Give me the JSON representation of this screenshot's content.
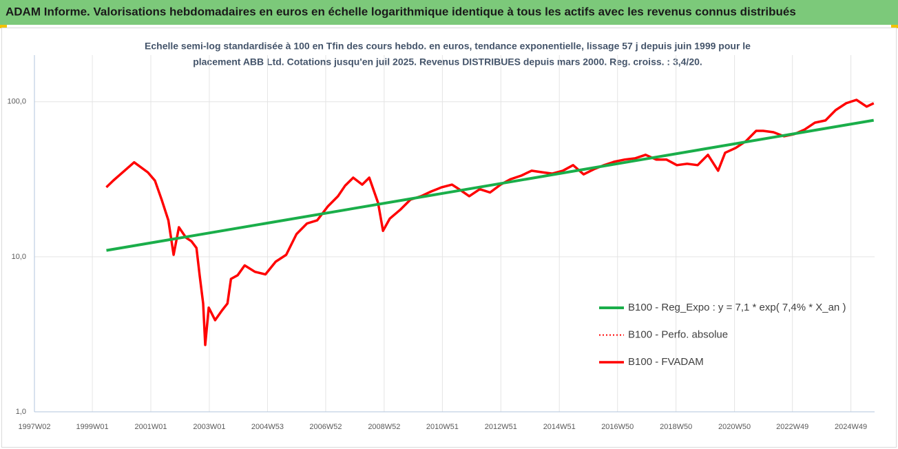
{
  "chart_data": {
    "type": "line",
    "title": "ADAM Informe. Valorisations hebdomadaires en euros en échelle logarithmique identique à tous les actifs avec les revenus connus distribués",
    "subtitle": [
      "Echelle semi-log standardisée à 100 en Tfin des cours hebdo. en euros, tendance exponentielle, lissage 57 j depuis juin 1999 pour le",
      "placement ABB Ltd. Cotations jusqu'en juil 2025. Revenus DISTRIBUES depuis mars 2000. Reg. croiss. : 3,4/20."
    ],
    "log_scale": true,
    "grid": true,
    "legend": "right",
    "xlim": [
      1997.02,
      2025.75
    ],
    "ylim": [
      1,
      200
    ],
    "yticks": [
      {
        "value": 1,
        "label": "1,0"
      },
      {
        "value": 10,
        "label": "10,0"
      },
      {
        "value": 100,
        "label": "100,0"
      }
    ],
    "xticks": [
      {
        "value": 1997.02,
        "label": "1997W02"
      },
      {
        "value": 1999.0,
        "label": "1999W01"
      },
      {
        "value": 2001.0,
        "label": "2001W01"
      },
      {
        "value": 2003.0,
        "label": "2003W01"
      },
      {
        "value": 2004.99,
        "label": "2004W53"
      },
      {
        "value": 2006.98,
        "label": "2006W52"
      },
      {
        "value": 2008.98,
        "label": "2008W52"
      },
      {
        "value": 2010.97,
        "label": "2010W51"
      },
      {
        "value": 2012.97,
        "label": "2012W51"
      },
      {
        "value": 2014.97,
        "label": "2014W51"
      },
      {
        "value": 2016.96,
        "label": "2016W50"
      },
      {
        "value": 2018.96,
        "label": "2018W50"
      },
      {
        "value": 2020.96,
        "label": "2020W50"
      },
      {
        "value": 2022.94,
        "label": "2022W49"
      },
      {
        "value": 2024.94,
        "label": "2024W49"
      }
    ],
    "x": [
      1999.48,
      1999.72,
      2000.43,
      2000.9,
      2001.14,
      2001.37,
      2001.6,
      2001.78,
      2001.96,
      2002.2,
      2002.39,
      2002.56,
      2002.67,
      2002.79,
      2002.86,
      2002.98,
      2003.2,
      2003.43,
      2003.62,
      2003.74,
      2003.97,
      2004.21,
      2004.56,
      2004.92,
      2005.27,
      2005.63,
      2005.98,
      2006.34,
      2006.69,
      2007.05,
      2007.4,
      2007.64,
      2007.92,
      2008.23,
      2008.47,
      2008.77,
      2008.94,
      2009.17,
      2009.53,
      2009.88,
      2010.24,
      2010.59,
      2010.95,
      2011.3,
      2011.54,
      2011.89,
      2012.25,
      2012.6,
      2012.96,
      2013.31,
      2013.67,
      2014.02,
      2014.38,
      2014.73,
      2015.09,
      2015.44,
      2015.8,
      2016.15,
      2016.5,
      2016.86,
      2017.21,
      2017.57,
      2017.92,
      2018.28,
      2018.63,
      2018.99,
      2019.34,
      2019.7,
      2020.05,
      2020.4,
      2020.64,
      2021.0,
      2021.35,
      2021.7,
      2021.94,
      2022.29,
      2022.65,
      2023.0,
      2023.36,
      2023.71,
      2024.07,
      2024.42,
      2024.78,
      2025.13,
      2025.48,
      2025.72
    ],
    "series": [
      {
        "name": "B100 - Reg_Expo : y = 7,1 * exp( 7,4% *  X_an )",
        "color": "#1aae4a",
        "width": 4,
        "dash": false,
        "x": [
          1999.48,
          2025.72
        ],
        "values": [
          11,
          76
        ]
      },
      {
        "name": "B100 - Perfo. absolue",
        "color": "#ff0000",
        "width": 2,
        "dash": true,
        "values": [
          28.1,
          31.1,
          40.7,
          35,
          31,
          23.4,
          17.2,
          10.3,
          15.5,
          13.3,
          12.6,
          11.4,
          7.6,
          5.0,
          2.7,
          4.7,
          3.9,
          4.5,
          5.0,
          7.2,
          7.6,
          8.8,
          8.0,
          7.7,
          9.3,
          10.3,
          14.0,
          16.4,
          17.2,
          21.1,
          24.6,
          28.7,
          32.4,
          29.2,
          32.4,
          22.3,
          14.7,
          17.6,
          20.1,
          23.4,
          24.6,
          26.4,
          28.1,
          29.2,
          27.3,
          24.6,
          27.3,
          26.0,
          29.2,
          31.7,
          33.4,
          35.9,
          35.1,
          34.4,
          35.9,
          39.0,
          34.0,
          36.7,
          39.0,
          41.1,
          42.4,
          43.2,
          45.5,
          42.4,
          42.4,
          39.0,
          39.8,
          39.0,
          45.5,
          35.9,
          46.9,
          50.4,
          55.7,
          64.9,
          64.9,
          63.6,
          59.9,
          61.8,
          66.2,
          73.3,
          75.8,
          88.3,
          97.8,
          102.9,
          93.1,
          97.8
        ]
      },
      {
        "name": "B100 - FVADAM",
        "color": "#ff0000",
        "width": 3.5,
        "dash": false,
        "values": [
          28.1,
          31.1,
          40.7,
          35,
          31,
          23.4,
          17.2,
          10.3,
          15.5,
          13.3,
          12.6,
          11.4,
          7.6,
          5.0,
          2.7,
          4.7,
          3.9,
          4.5,
          5.0,
          7.2,
          7.6,
          8.8,
          8.0,
          7.7,
          9.3,
          10.3,
          14.0,
          16.4,
          17.2,
          21.1,
          24.6,
          28.7,
          32.4,
          29.2,
          32.4,
          22.3,
          14.7,
          17.6,
          20.1,
          23.4,
          24.6,
          26.4,
          28.1,
          29.2,
          27.3,
          24.6,
          27.3,
          26.0,
          29.2,
          31.7,
          33.4,
          35.9,
          35.1,
          34.4,
          35.9,
          39.0,
          34.0,
          36.7,
          39.0,
          41.1,
          42.4,
          43.2,
          45.5,
          42.4,
          42.4,
          39.0,
          39.8,
          39.0,
          45.5,
          35.9,
          46.9,
          50.4,
          55.7,
          64.9,
          64.9,
          63.6,
          59.9,
          61.8,
          66.2,
          73.3,
          75.8,
          88.3,
          97.8,
          102.9,
          93.1,
          97.8
        ]
      }
    ]
  }
}
